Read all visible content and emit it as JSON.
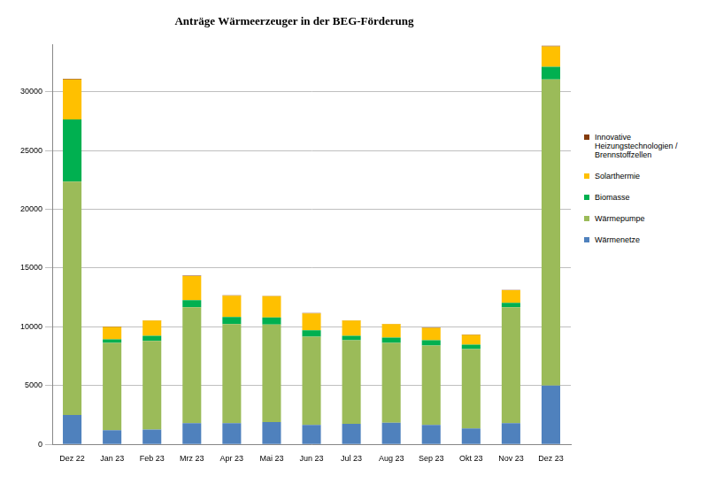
{
  "chart_data": {
    "type": "bar",
    "title": "Anträge Wärmeerzeuger in der BEG-Förderung",
    "categories": [
      "Dez 22",
      "Jan 23",
      "Feb 23",
      "Mrz 23",
      "Apr 23",
      "Mai 23",
      "Jun 23",
      "Jul 23",
      "Aug 23",
      "Sep 23",
      "Okt 23",
      "Nov 23",
      "Dez 23"
    ],
    "series": [
      {
        "name": "Wärmenetze",
        "color": "#4f81bd",
        "values": [
          2500,
          1200,
          1250,
          1800,
          1800,
          1900,
          1650,
          1750,
          1850,
          1650,
          1350,
          1800,
          5000
        ]
      },
      {
        "name": "Wärmepumpe",
        "color": "#9bbb59",
        "values": [
          19850,
          7440,
          7550,
          9860,
          8430,
          8300,
          7520,
          7110,
          6790,
          6760,
          6750,
          9870,
          26060
        ]
      },
      {
        "name": "Biomasse",
        "color": "#00b050",
        "values": [
          5300,
          300,
          440,
          610,
          600,
          600,
          530,
          380,
          450,
          450,
          380,
          380,
          1060
        ]
      },
      {
        "name": "Solarthermie",
        "color": "#ffc000",
        "values": [
          3400,
          1060,
          1290,
          2050,
          1820,
          1800,
          1440,
          1290,
          1140,
          1060,
          840,
          1060,
          1740
        ]
      },
      {
        "name": "Innovative Heizungstechnologien / Brennstoffzellen",
        "color": "#843c0c",
        "values": [
          50,
          20,
          20,
          30,
          30,
          30,
          30,
          30,
          30,
          30,
          30,
          30,
          50
        ]
      }
    ],
    "ylim": [
      0,
      34000
    ],
    "yticks": [
      0,
      5000,
      10000,
      15000,
      20000,
      25000,
      30000
    ],
    "stacked": true,
    "grid": true,
    "legend": "right"
  }
}
